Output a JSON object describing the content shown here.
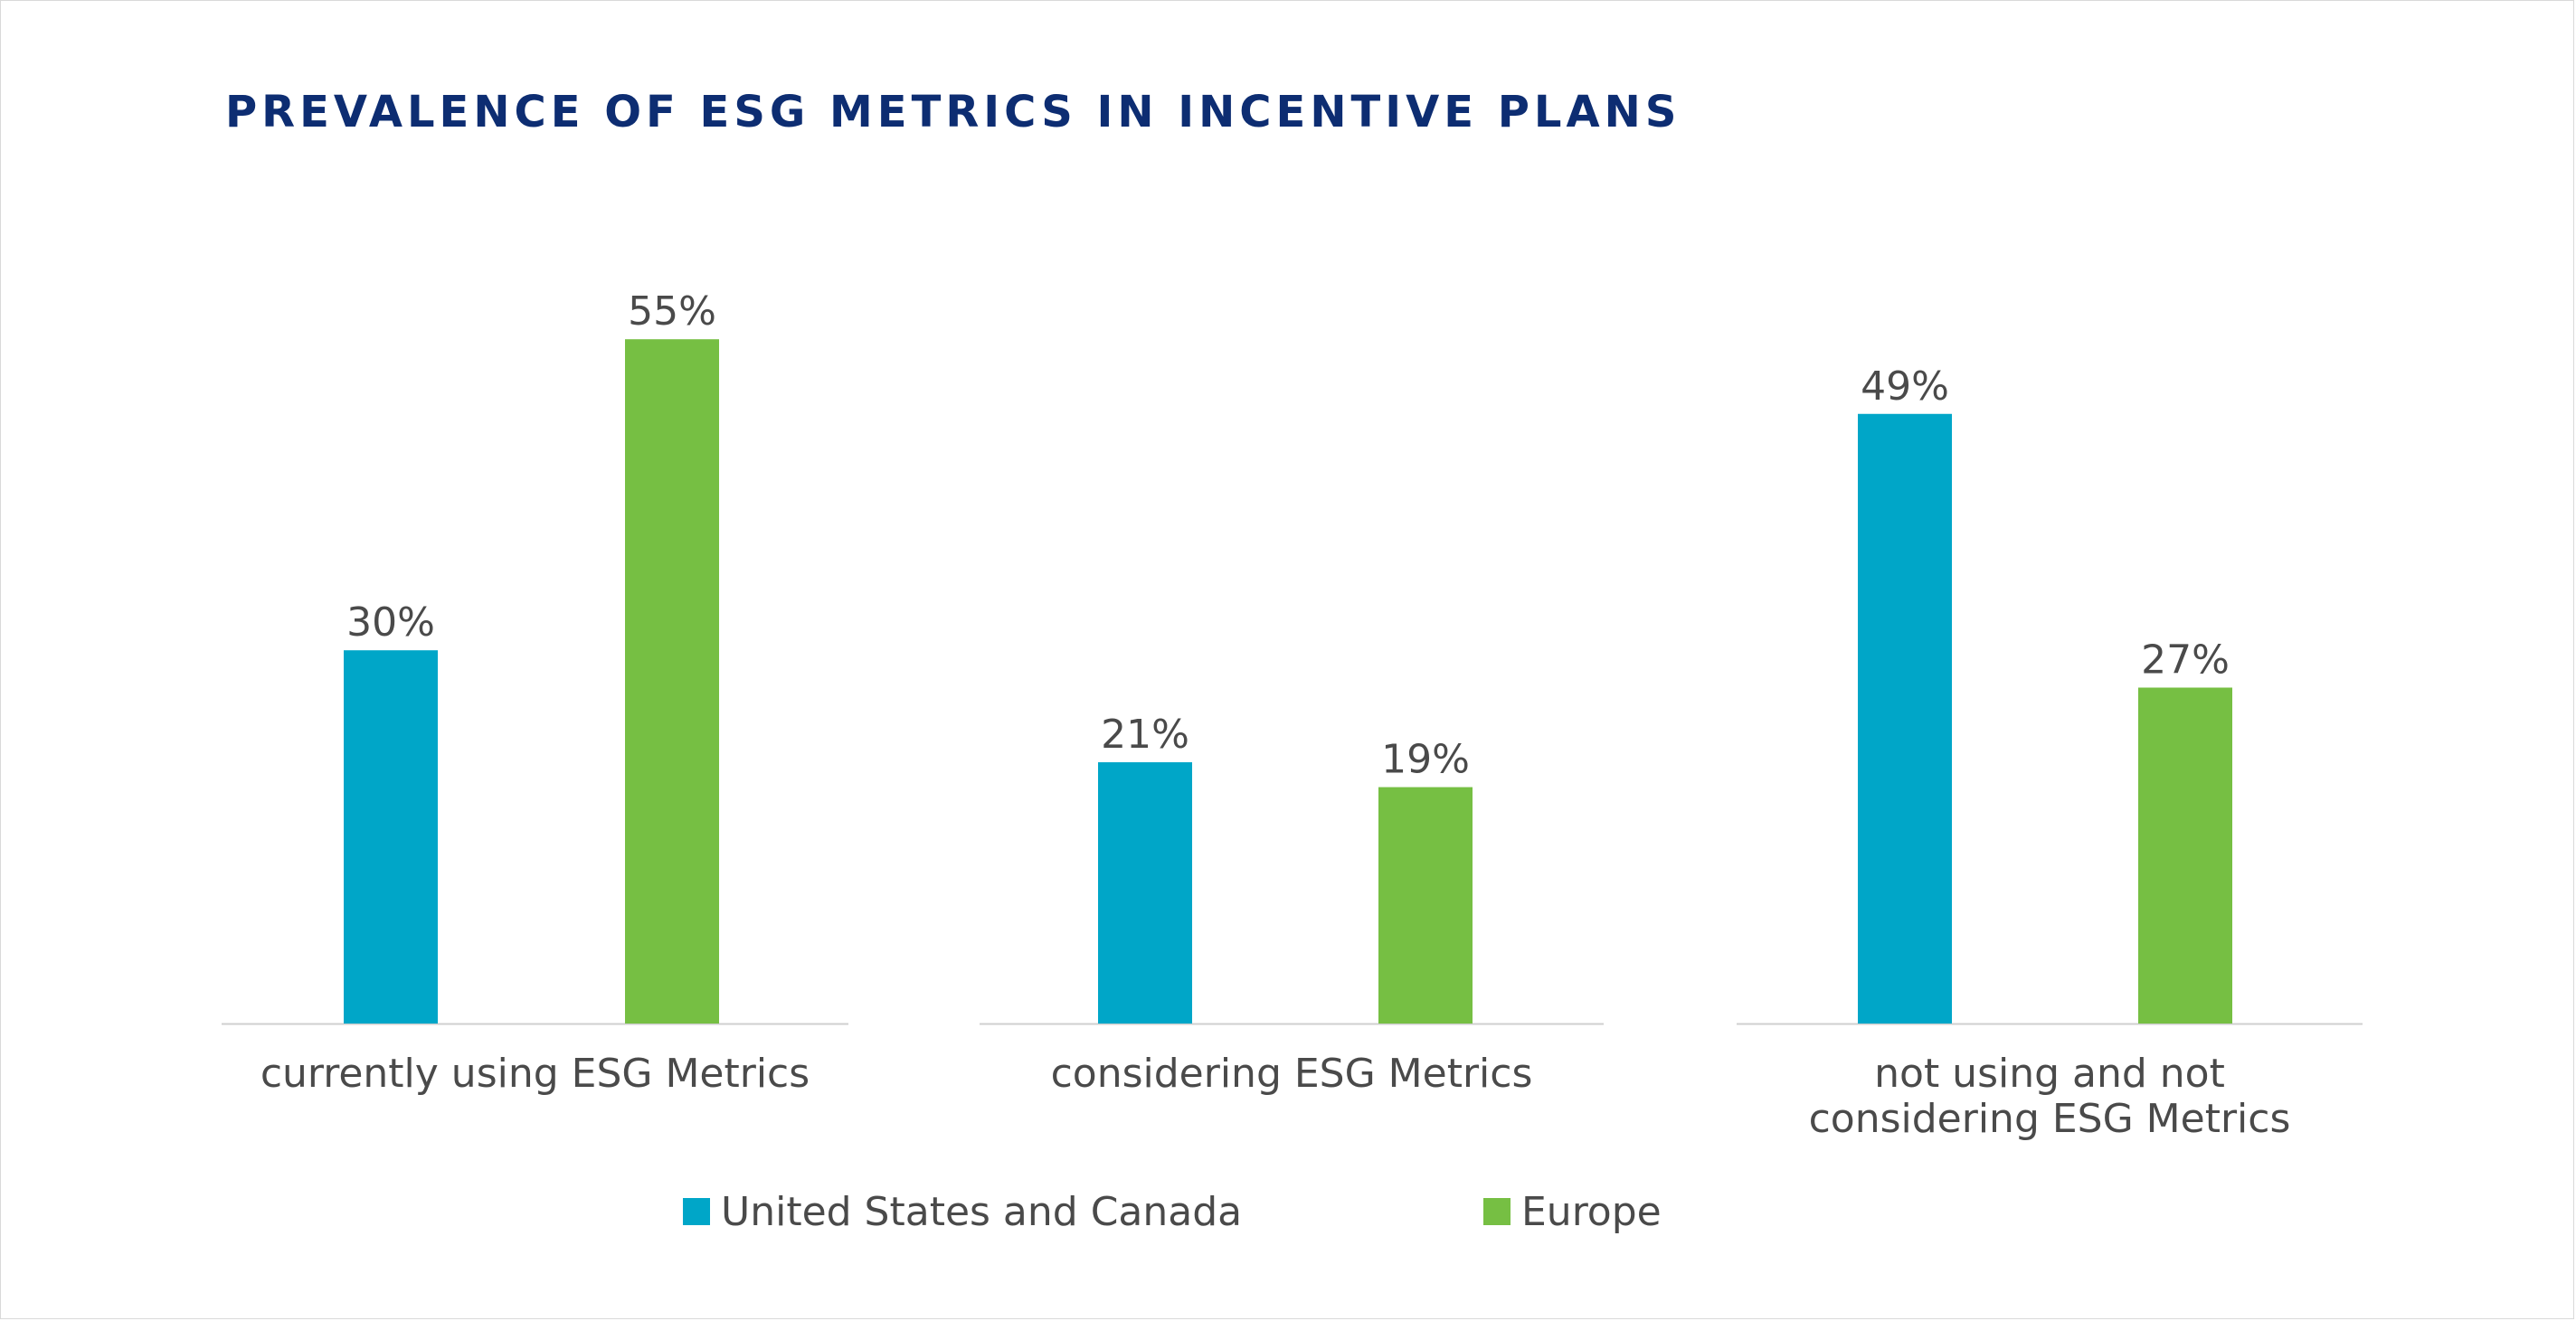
{
  "chart_data": {
    "type": "bar",
    "title": "PREVALENCE OF ESG METRICS IN INCENTIVE PLANS",
    "categories": [
      [
        "currently using ESG Metrics"
      ],
      [
        "considering ESG Metrics"
      ],
      [
        "not using and not",
        "considering ESG Metrics"
      ]
    ],
    "series": [
      {
        "name": "United States and Canada",
        "color": "#00a6c8",
        "values": [
          30,
          21,
          49
        ],
        "labels": [
          "30%",
          "21%",
          "49%"
        ]
      },
      {
        "name": "Europe",
        "color": "#76bf43",
        "values": [
          55,
          19,
          27
        ],
        "labels": [
          "55%",
          "19%",
          "27%"
        ]
      }
    ],
    "ylim": [
      0,
      100
    ],
    "value_unit": "%",
    "legend_position": "bottom-center",
    "grid": false
  }
}
